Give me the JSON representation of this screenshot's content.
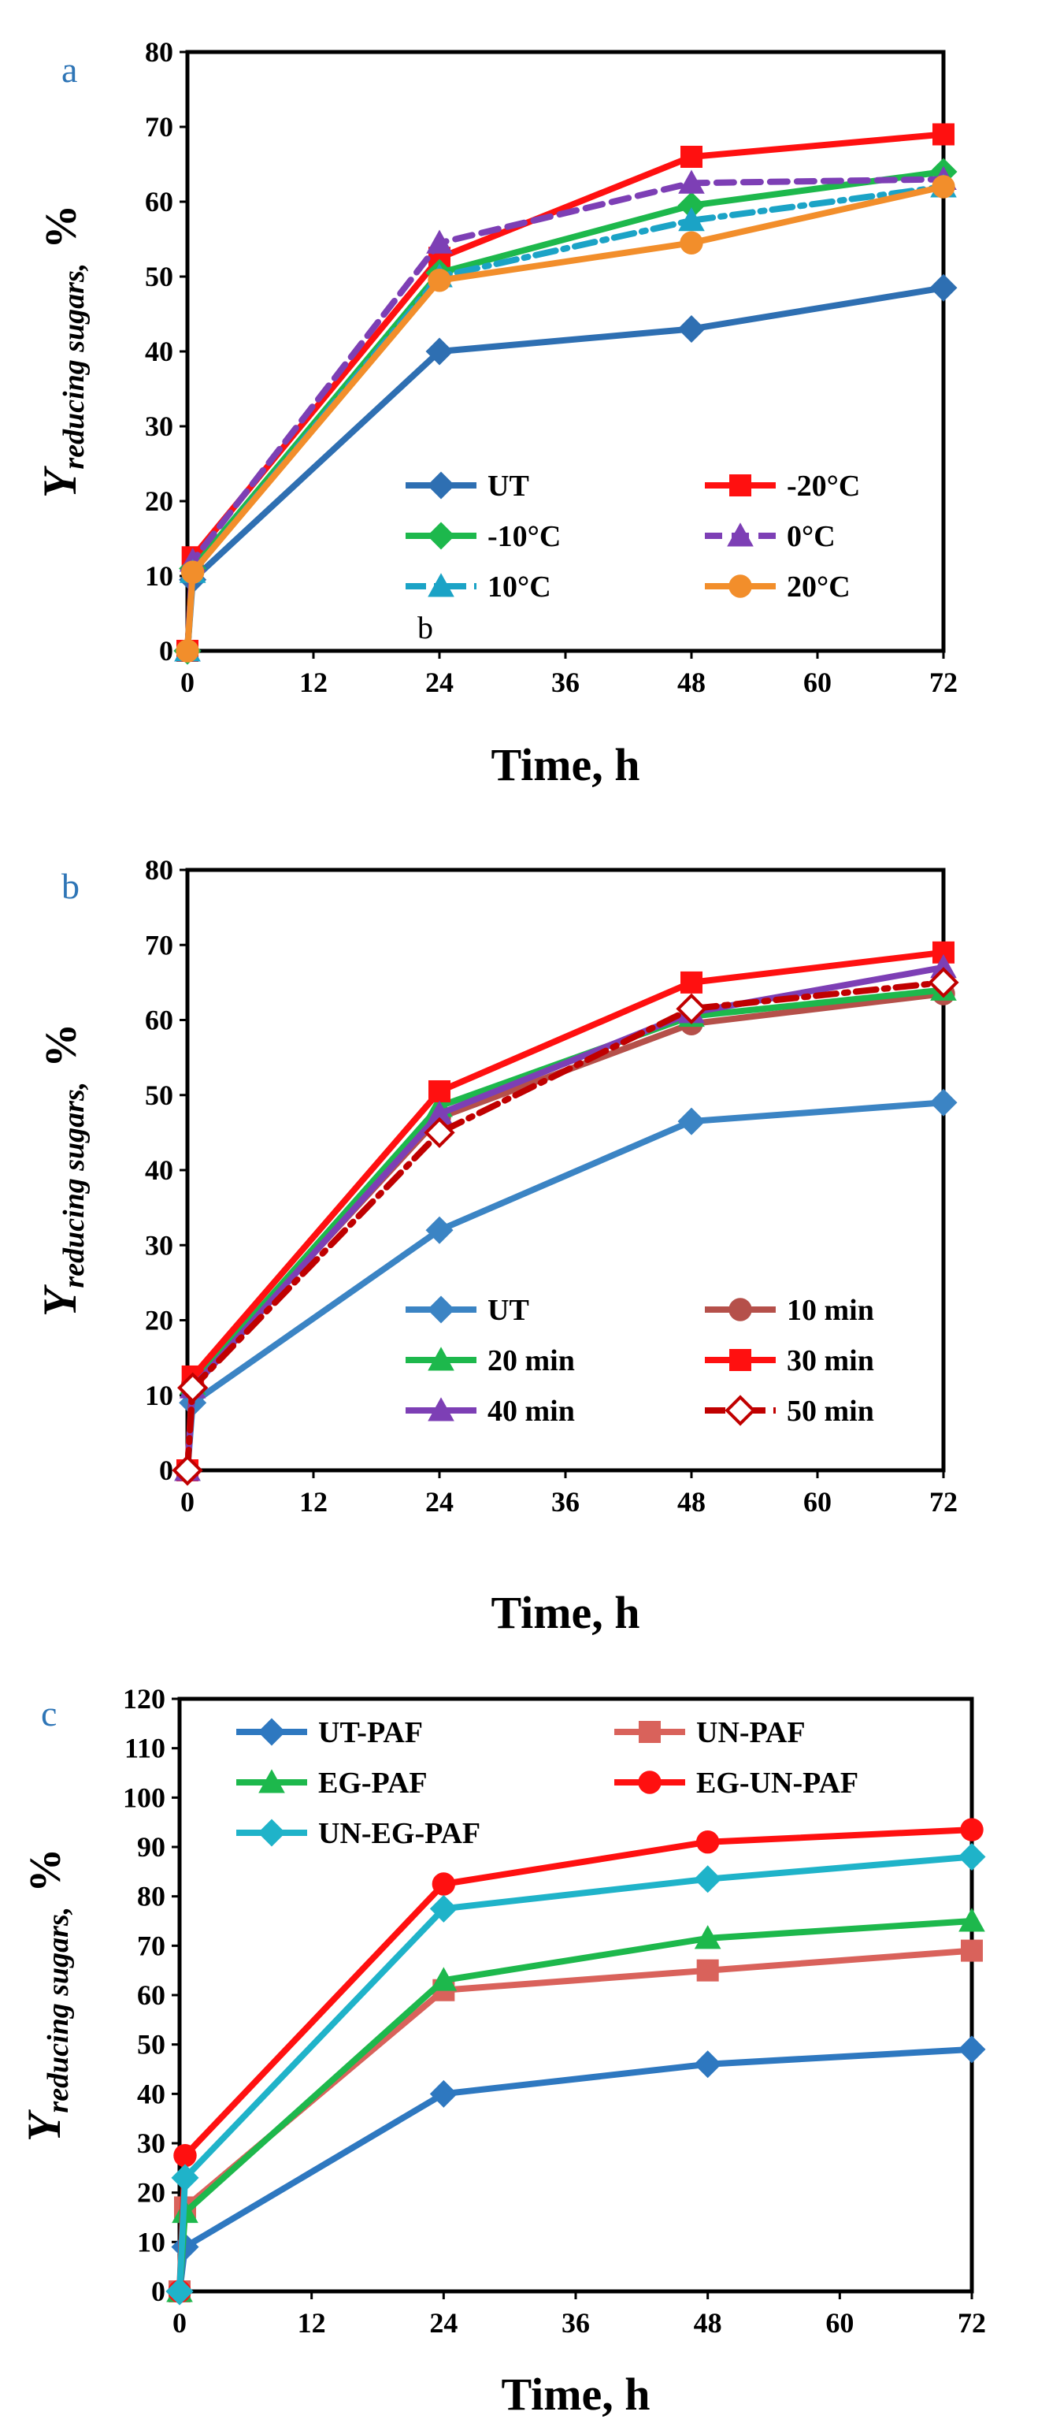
{
  "colors": {
    "panel_letter": "#2e75b6"
  },
  "chart_data": [
    {
      "panel": "a",
      "type": "line",
      "xlabel": "Time, h",
      "ylabel_main": "Y",
      "ylabel_sub": "reducing sugars",
      "ylabel_sep": ",",
      "ylabel_unit": "%",
      "xlim": [
        0,
        72
      ],
      "ylim": [
        0,
        80
      ],
      "xticks": [
        0,
        12,
        24,
        36,
        48,
        60,
        72
      ],
      "yticks": [
        0,
        10,
        20,
        30,
        40,
        50,
        60,
        70,
        80
      ],
      "annotation": "b",
      "legend": {
        "position": "bottom-right",
        "columns": 2,
        "order": [
          0,
          1,
          2,
          3,
          4,
          5
        ]
      },
      "series": [
        {
          "name": "UT",
          "color": "#2e6fb2",
          "marker": "diamond",
          "dash": "solid",
          "x": [
            0,
            0.5,
            24,
            48,
            72
          ],
          "y": [
            0,
            9.5,
            40,
            43,
            48.5
          ]
        },
        {
          "name": "-20°C",
          "color": "#ff1010",
          "marker": "square",
          "dash": "solid",
          "x": [
            0,
            0.5,
            24,
            48,
            72
          ],
          "y": [
            0,
            12.5,
            52.5,
            66,
            69
          ]
        },
        {
          "name": "-10°C",
          "color": "#1db84c",
          "marker": "diamond",
          "dash": "solid",
          "x": [
            0,
            0.5,
            24,
            48,
            72
          ],
          "y": [
            0,
            11,
            50.5,
            59.5,
            64
          ]
        },
        {
          "name": "0°C",
          "color": "#7d3fb5",
          "marker": "triangle",
          "dash": "dashed",
          "x": [
            0,
            0.5,
            24,
            48,
            72
          ],
          "y": [
            0,
            12,
            54.5,
            62.5,
            63
          ]
        },
        {
          "name": "10°C",
          "color": "#1ba3c6",
          "marker": "triangle",
          "dash": "dashdot",
          "x": [
            0,
            0.5,
            24,
            48,
            72
          ],
          "y": [
            0,
            10.5,
            50,
            57.5,
            62
          ]
        },
        {
          "name": "20°C",
          "color": "#f28e2b",
          "marker": "circle",
          "dash": "solid",
          "x": [
            0,
            0.5,
            24,
            48,
            72
          ],
          "y": [
            0,
            10.5,
            49.5,
            54.5,
            62
          ]
        }
      ]
    },
    {
      "panel": "b",
      "type": "line",
      "xlabel": "Time, h",
      "ylabel_main": "Y",
      "ylabel_sub": "reducing sugars",
      "ylabel_sep": ",",
      "ylabel_unit": "%",
      "xlim": [
        0,
        72
      ],
      "ylim": [
        0,
        80
      ],
      "xticks": [
        0,
        12,
        24,
        36,
        48,
        60,
        72
      ],
      "yticks": [
        0,
        10,
        20,
        30,
        40,
        50,
        60,
        70,
        80
      ],
      "legend": {
        "position": "bottom-right",
        "columns": 2,
        "order": [
          0,
          1,
          2,
          3,
          4,
          5
        ]
      },
      "series": [
        {
          "name": "UT",
          "color": "#3b84c4",
          "marker": "diamond",
          "dash": "solid",
          "x": [
            0,
            0.5,
            24,
            48,
            72
          ],
          "y": [
            0,
            9,
            32,
            46.5,
            49
          ]
        },
        {
          "name": "10 min",
          "color": "#b5504a",
          "marker": "circle",
          "dash": "solid",
          "x": [
            0,
            0.5,
            24,
            48,
            72
          ],
          "y": [
            0,
            11.5,
            47,
            59.5,
            63.5
          ]
        },
        {
          "name": "20 min",
          "color": "#1db84c",
          "marker": "triangle",
          "dash": "solid",
          "x": [
            0,
            0.5,
            24,
            48,
            72
          ],
          "y": [
            0,
            11.5,
            48.5,
            60.5,
            64
          ]
        },
        {
          "name": "30 min",
          "color": "#ff1010",
          "marker": "square",
          "dash": "solid",
          "x": [
            0,
            0.5,
            24,
            48,
            72
          ],
          "y": [
            0,
            12.5,
            50.5,
            65,
            69
          ]
        },
        {
          "name": "40 min",
          "color": "#7d3fb5",
          "marker": "triangle",
          "dash": "solid",
          "x": [
            0,
            0.5,
            24,
            48,
            72
          ],
          "y": [
            0,
            11,
            47.5,
            61,
            67
          ]
        },
        {
          "name": "50 min",
          "color": "#c00000",
          "marker": "diamond-open",
          "dash": "dashdot",
          "x": [
            0,
            0.5,
            24,
            48,
            72
          ],
          "y": [
            0,
            11,
            45,
            61.5,
            65
          ]
        }
      ]
    },
    {
      "panel": "c",
      "type": "line",
      "xlabel": "Time, h",
      "ylabel_main": "Y",
      "ylabel_sub": "reducing sugars",
      "ylabel_sep": ",",
      "ylabel_unit": "%",
      "xlim": [
        0,
        72
      ],
      "ylim": [
        0,
        120
      ],
      "xticks": [
        0,
        12,
        24,
        36,
        48,
        60,
        72
      ],
      "yticks": [
        0,
        10,
        20,
        30,
        40,
        50,
        60,
        70,
        80,
        90,
        100,
        110,
        120
      ],
      "legend": {
        "position": "top",
        "columns": 2,
        "order": [
          0,
          1,
          2,
          3,
          4
        ]
      },
      "series": [
        {
          "name": "UT-PAF",
          "color": "#2e78c0",
          "marker": "diamond",
          "dash": "solid",
          "x": [
            0,
            0.5,
            24,
            48,
            72
          ],
          "y": [
            0,
            9,
            40,
            46,
            49
          ]
        },
        {
          "name": "UN-PAF",
          "color": "#d9625b",
          "marker": "square",
          "dash": "solid",
          "x": [
            0,
            0.5,
            24,
            48,
            72
          ],
          "y": [
            0,
            17,
            61,
            65,
            69
          ]
        },
        {
          "name": "EG-PAF",
          "color": "#1db84c",
          "marker": "triangle",
          "dash": "solid",
          "x": [
            0,
            0.5,
            24,
            48,
            72
          ],
          "y": [
            0,
            16,
            63,
            71.5,
            75
          ]
        },
        {
          "name": "EG-UN-PAF",
          "color": "#ff1010",
          "marker": "circle",
          "dash": "solid",
          "x": [
            0,
            0.5,
            24,
            48,
            72
          ],
          "y": [
            0,
            27.5,
            82.5,
            91,
            93.5
          ]
        },
        {
          "name": "UN-EG-PAF",
          "color": "#1fb3c9",
          "marker": "diamond",
          "dash": "solid",
          "x": [
            0,
            0.5,
            24,
            48,
            72
          ],
          "y": [
            0,
            23,
            77.5,
            83.5,
            88
          ]
        }
      ]
    }
  ]
}
